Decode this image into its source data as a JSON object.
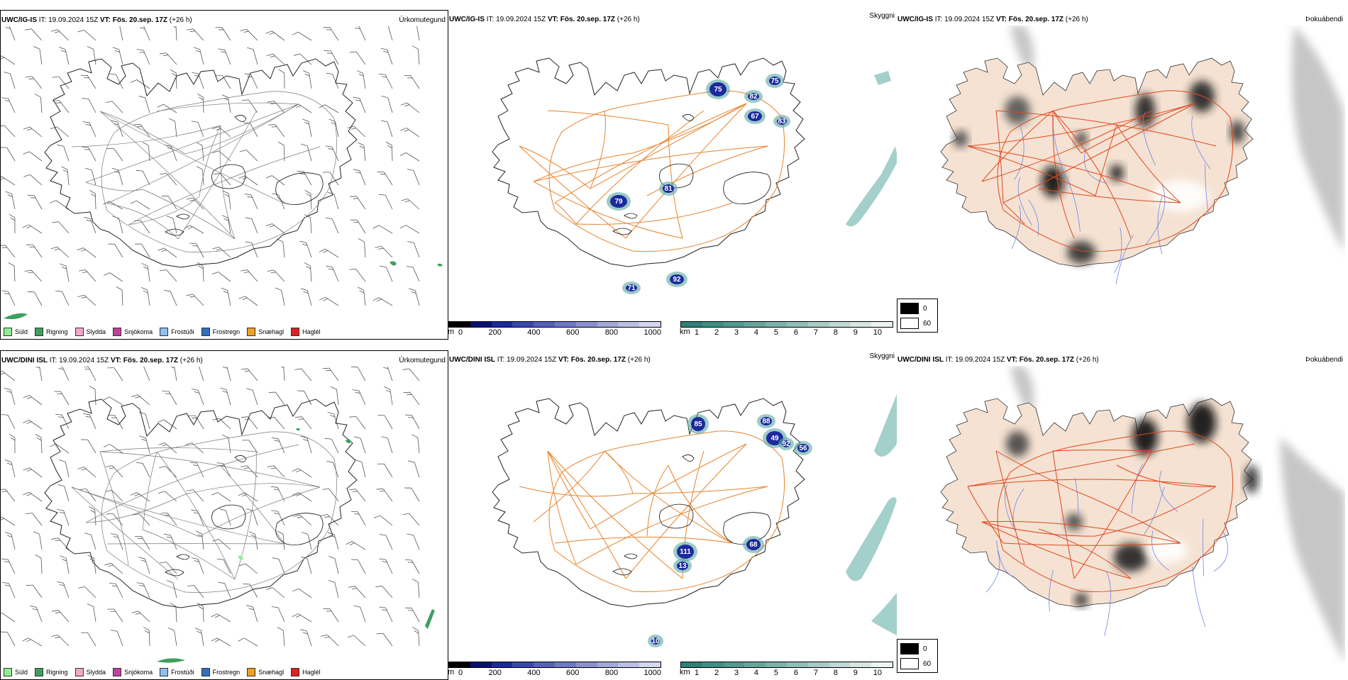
{
  "colors": {
    "coast": "#222222",
    "road_orange": "#e8822a",
    "road_red": "#e0481f",
    "river_blue": "#6f86e8",
    "land_beige": "#f5e2d2",
    "precip_green": "#3f9f5f",
    "height_dark": "#1d2a9e",
    "cloud_teal": "#5aa9a0"
  },
  "rows": [
    {
      "id": "igis",
      "panels": [
        {
          "model": "UWC/IG-IS",
          "it_label": "IT:",
          "it_value": "19.09.2024 15Z",
          "vt_label": "VT:",
          "vt_value": "Fös. 20.sep. 17Z",
          "lead": "(+26 h)",
          "field": "Úrkomutegund"
        },
        {
          "model": "UWC/IG-IS",
          "it_label": "IT:",
          "it_value": "19.09.2024 15Z",
          "vt_label": "VT:",
          "vt_value": "Fös. 20.sep. 17Z",
          "lead": "(+26 h)",
          "field": "Skyggni",
          "labels": [
            "75",
            "79",
            "81",
            "92",
            "71",
            "67",
            "82",
            "83",
            "75"
          ]
        },
        {
          "model": "UWC/IG-IS",
          "it_label": "IT:",
          "it_value": "19.09.2024 15Z",
          "vt_label": "VT:",
          "vt_value": "Fös. 20.sep. 17Z",
          "lead": "(+26 h)",
          "field": "Þokuábendi"
        }
      ]
    },
    {
      "id": "dini",
      "panels": [
        {
          "model": "UWC/DINI ISL",
          "it_label": "IT:",
          "it_value": "19.09.2024 15Z",
          "vt_label": "VT:",
          "vt_value": "Fös. 20.sep. 17Z",
          "lead": "(+26 h)",
          "field": "Úrkomutegund"
        },
        {
          "model": "UWC/DINI ISL",
          "it_label": "IT:",
          "it_value": "19.09.2024 15Z",
          "vt_label": "VT:",
          "vt_value": "Fös. 20.sep. 17Z",
          "lead": "(+26 h)",
          "field": "Skyggni",
          "labels": [
            "85",
            "49",
            "88",
            "92",
            "56",
            "111",
            "13",
            "68",
            "10"
          ]
        },
        {
          "model": "UWC/DINI ISL",
          "it_label": "IT:",
          "it_value": "19.09.2024 15Z",
          "vt_label": "VT:",
          "vt_value": "Fös. 20.sep. 17Z",
          "lead": "(+26 h)",
          "field": "Þokuábendi"
        }
      ]
    }
  ],
  "precip_legend": [
    {
      "label": "Súld",
      "color": "#90ee90"
    },
    {
      "label": "Rigning",
      "color": "#3f9f5f"
    },
    {
      "label": "Slydda",
      "color": "#f4a6c8"
    },
    {
      "label": "Snjókoma",
      "color": "#c0409f"
    },
    {
      "label": "Frostúði",
      "color": "#8fbfef"
    },
    {
      "label": "Frostregn",
      "color": "#3070c0"
    },
    {
      "label": "Snæhagl",
      "color": "#f0a020"
    },
    {
      "label": "Haglél",
      "color": "#e02020"
    }
  ],
  "height_scale": {
    "unit": "m",
    "ticks": [
      "0",
      "200",
      "400",
      "600",
      "800",
      "1000"
    ],
    "colors": [
      "#000000",
      "#0a1070",
      "#1d2a9e",
      "#3a46b0",
      "#5560bc",
      "#6f78c6",
      "#8a90d0",
      "#a2a8da",
      "#bcbfe4",
      "#d5d7ee"
    ]
  },
  "vis_scale": {
    "unit": "km",
    "ticks": [
      "1",
      "2",
      "3",
      "4",
      "5",
      "6",
      "7",
      "8",
      "9",
      "10"
    ],
    "colors": [
      "#2f7f77",
      "#3f8e86",
      "#52998f",
      "#66a59c",
      "#7bb2a9",
      "#91bfb7",
      "#a8ccc5",
      "#bfd9d4",
      "#d5e6e3",
      "#ecf4f2"
    ]
  },
  "fog_legend": {
    "low": "0",
    "high": "60"
  }
}
